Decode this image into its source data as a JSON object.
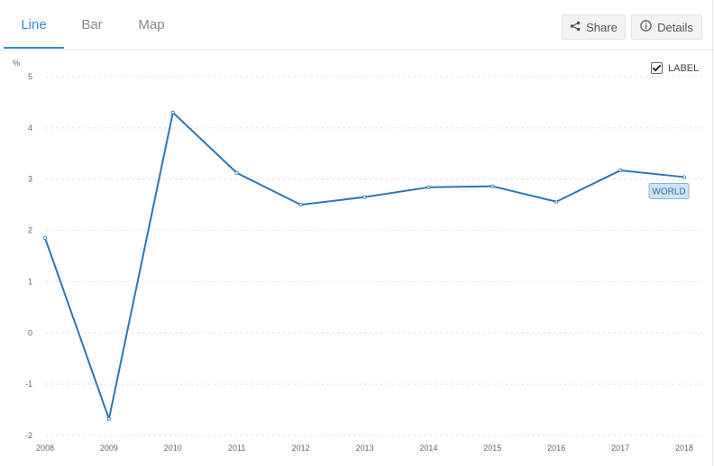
{
  "tabs": [
    {
      "label": "Line",
      "active": true
    },
    {
      "label": "Bar",
      "active": false
    },
    {
      "label": "Map",
      "active": false
    }
  ],
  "toolbar": {
    "share_label": "Share",
    "share_icon": "share-icon",
    "details_label": "Details",
    "details_icon": "info-icon"
  },
  "label_toggle": {
    "label": "LABEL",
    "checked": true
  },
  "colors": {
    "accent": "#2d8ed0",
    "line": "#2b77b5",
    "grid": "#e3e3e3"
  },
  "chart_data": {
    "type": "line",
    "unit_label": "%",
    "x": [
      "2008",
      "2009",
      "2010",
      "2011",
      "2012",
      "2013",
      "2014",
      "2015",
      "2016",
      "2017",
      "2018"
    ],
    "y_ticks": [
      "5",
      "4",
      "3",
      "2",
      "1",
      "0",
      "-1",
      "-2"
    ],
    "ylim": [
      -2,
      5
    ],
    "grid": true,
    "series": [
      {
        "name": "WORLD",
        "values": [
          1.85,
          -1.68,
          4.3,
          3.12,
          2.5,
          2.65,
          2.84,
          2.86,
          2.56,
          3.17,
          3.04
        ]
      }
    ]
  }
}
